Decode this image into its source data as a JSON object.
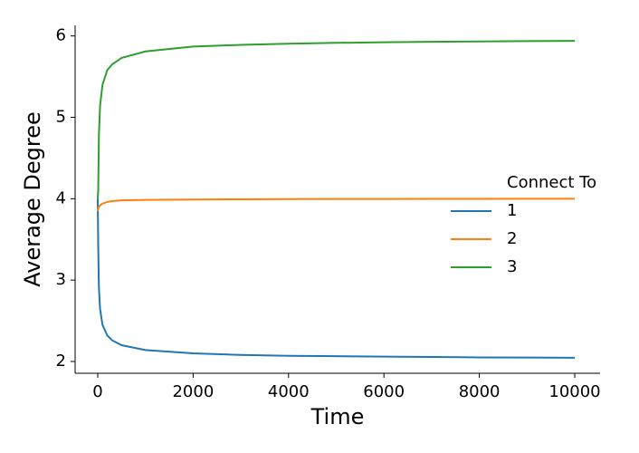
{
  "chart_data": {
    "type": "line",
    "xlabel": "Time",
    "ylabel": "Average Degree",
    "legend_title": "Connect To",
    "legend_position": "center right",
    "x": [
      0,
      10,
      25,
      50,
      100,
      200,
      300,
      500,
      1000,
      2000,
      3000,
      4000,
      5000,
      6000,
      7000,
      8000,
      9000,
      10000
    ],
    "series": [
      {
        "name": "1",
        "color": "#1f77b4",
        "values": [
          4.0,
          3.42,
          2.9,
          2.64,
          2.45,
          2.32,
          2.26,
          2.2,
          2.14,
          2.1,
          2.08,
          2.07,
          2.065,
          2.06,
          2.055,
          2.05,
          2.048,
          2.045
        ]
      },
      {
        "name": "2",
        "color": "#ff7f0e",
        "values": [
          3.85,
          3.88,
          3.9,
          3.92,
          3.94,
          3.96,
          3.97,
          3.98,
          3.985,
          3.99,
          3.993,
          3.995,
          3.996,
          3.997,
          3.998,
          3.998,
          3.999,
          3.999
        ]
      },
      {
        "name": "3",
        "color": "#2ca02c",
        "values": [
          4.0,
          4.1,
          4.8,
          5.15,
          5.4,
          5.58,
          5.65,
          5.73,
          5.81,
          5.87,
          5.89,
          5.905,
          5.915,
          5.922,
          5.928,
          5.933,
          5.937,
          5.94
        ]
      }
    ],
    "xlim": [
      -474,
      10531
    ],
    "ylim": [
      1.855,
      6.13
    ],
    "xticks": [
      0,
      2000,
      4000,
      6000,
      8000,
      10000
    ],
    "yticks": [
      2,
      3,
      4,
      5,
      6
    ]
  }
}
